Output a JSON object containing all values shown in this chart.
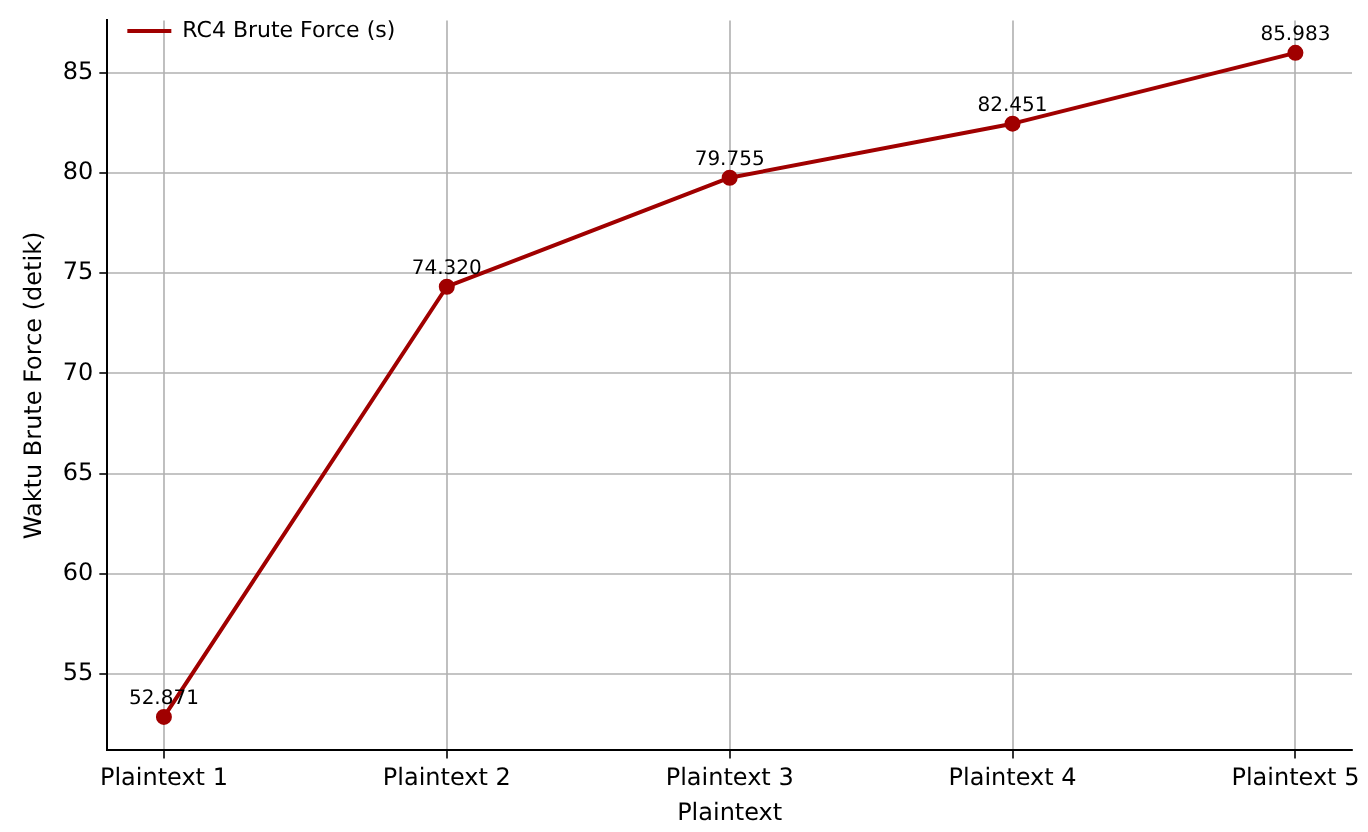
{
  "chart_data": {
    "type": "line",
    "xlabel": "Plaintext",
    "ylabel": "Waktu Brute Force (detik)",
    "categories": [
      "Plaintext 1",
      "Plaintext 2",
      "Plaintext 3",
      "Plaintext 4",
      "Plaintext 5"
    ],
    "series": [
      {
        "name": "RC4 Brute Force (s)",
        "color": "#a00000",
        "values": [
          52.871,
          74.32,
          79.755,
          82.451,
          85.983
        ],
        "value_labels": [
          "52.871",
          "74.320",
          "79.755",
          "82.451",
          "85.983"
        ]
      }
    ],
    "ylim": [
      51.2,
      87.6
    ],
    "yticks": [
      55,
      60,
      65,
      70,
      75,
      80,
      85
    ],
    "grid": true,
    "legend": "top left",
    "marker": "circle",
    "line_style": "solid"
  }
}
